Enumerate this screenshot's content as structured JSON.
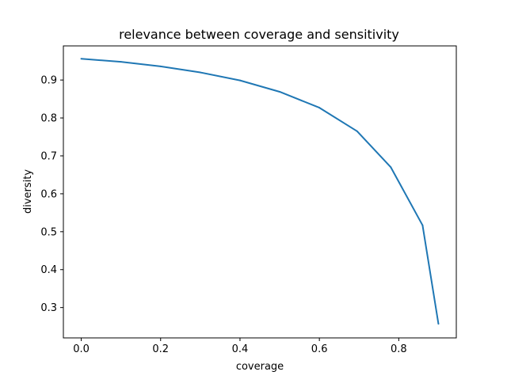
{
  "chart_data": {
    "type": "line",
    "title": "relevance between coverage and sensitivity",
    "xlabel": "coverage",
    "ylabel": "diversity",
    "xlim": [
      -0.045,
      0.945
    ],
    "ylim": [
      0.22,
      0.99
    ],
    "xticks": [
      0.0,
      0.2,
      0.4,
      0.6,
      0.8
    ],
    "xtick_labels": [
      "0.0",
      "0.2",
      "0.4",
      "0.6",
      "0.8"
    ],
    "yticks": [
      0.3,
      0.4,
      0.5,
      0.6,
      0.7,
      0.8,
      0.9
    ],
    "ytick_labels": [
      "0.3",
      "0.4",
      "0.5",
      "0.6",
      "0.7",
      "0.8",
      "0.9"
    ],
    "grid": false,
    "legend": false,
    "series": [
      {
        "color": "#1f77b4",
        "x": [
          0.0,
          0.1,
          0.2,
          0.3,
          0.4,
          0.5,
          0.6,
          0.695,
          0.78,
          0.86,
          0.9
        ],
        "y": [
          0.956,
          0.948,
          0.936,
          0.92,
          0.899,
          0.869,
          0.827,
          0.765,
          0.67,
          0.517,
          0.257
        ]
      }
    ]
  }
}
